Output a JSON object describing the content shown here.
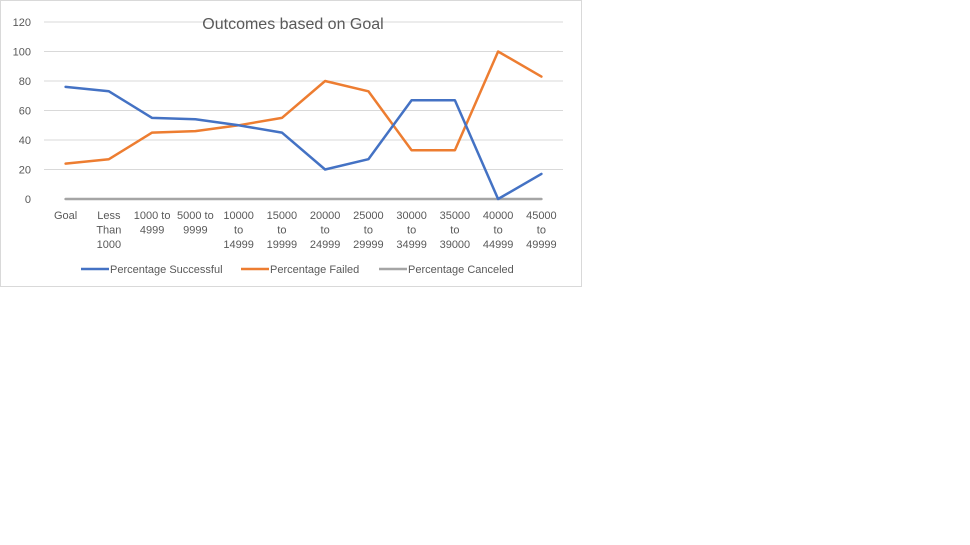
{
  "chart_data": {
    "type": "line",
    "title": "Outcomes based on Goal",
    "xlabel": "",
    "ylabel": "",
    "ylim": [
      0,
      120
    ],
    "y_ticks": [
      0,
      20,
      40,
      60,
      80,
      100,
      120
    ],
    "grid": true,
    "legend_position": "bottom",
    "categories": [
      [
        "Goal"
      ],
      [
        "Less",
        "Than",
        "1000"
      ],
      [
        "1000 to",
        "4999"
      ],
      [
        "5000 to",
        "9999"
      ],
      [
        "10000",
        "to",
        "14999"
      ],
      [
        "15000",
        "to",
        "19999"
      ],
      [
        "20000",
        "to",
        "24999"
      ],
      [
        "25000",
        "to",
        "29999"
      ],
      [
        "30000",
        "to",
        "34999"
      ],
      [
        "35000",
        "to",
        "39000"
      ],
      [
        "40000",
        "to",
        "44999"
      ],
      [
        "45000",
        "to",
        "49999"
      ]
    ],
    "series": [
      {
        "name": "Percentage Successful",
        "color": "#4472c4",
        "values": [
          76,
          73,
          55,
          54,
          50,
          45,
          20,
          27,
          67,
          67,
          0,
          17
        ]
      },
      {
        "name": "Percentage Failed",
        "color": "#ed7d31",
        "values": [
          24,
          27,
          45,
          46,
          50,
          55,
          80,
          73,
          33,
          33,
          100,
          83
        ]
      },
      {
        "name": "Percentage Canceled",
        "color": "#a5a5a5",
        "values": [
          0,
          0,
          0,
          0,
          0,
          0,
          0,
          0,
          0,
          0,
          0,
          0
        ]
      }
    ]
  }
}
